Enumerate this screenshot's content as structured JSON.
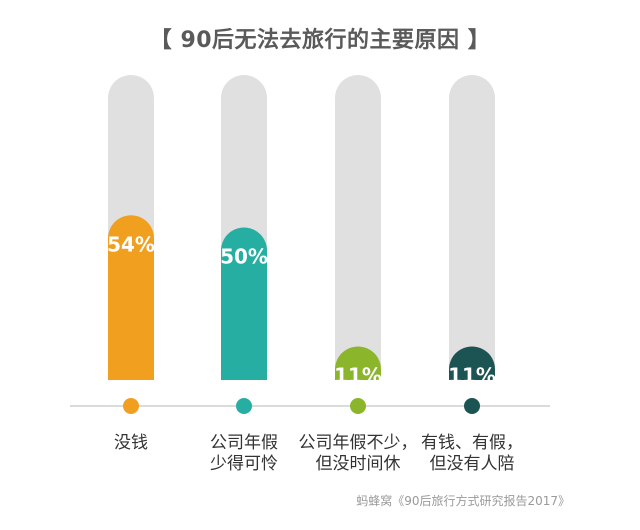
{
  "chart_data": {
    "type": "bar",
    "title": "【 90后无法去旅行的主要原因 】",
    "categories": [
      [
        "没钱"
      ],
      [
        "公司年假",
        "少得可怜"
      ],
      [
        "公司年假不少，",
        "但没时间休"
      ],
      [
        "有钱、有假，",
        "但没有人陪"
      ]
    ],
    "values": [
      54,
      50,
      11,
      11
    ],
    "value_labels": [
      "54%",
      "50%",
      "11%",
      "11%"
    ],
    "ylim": [
      0,
      100
    ],
    "colors": [
      "#f0a01e",
      "#26aea3",
      "#8bb62c",
      "#1c5453"
    ],
    "track_color": "#e0e0e0"
  },
  "source": "蚂蜂窝《90后旅行方式研究报告2017》"
}
